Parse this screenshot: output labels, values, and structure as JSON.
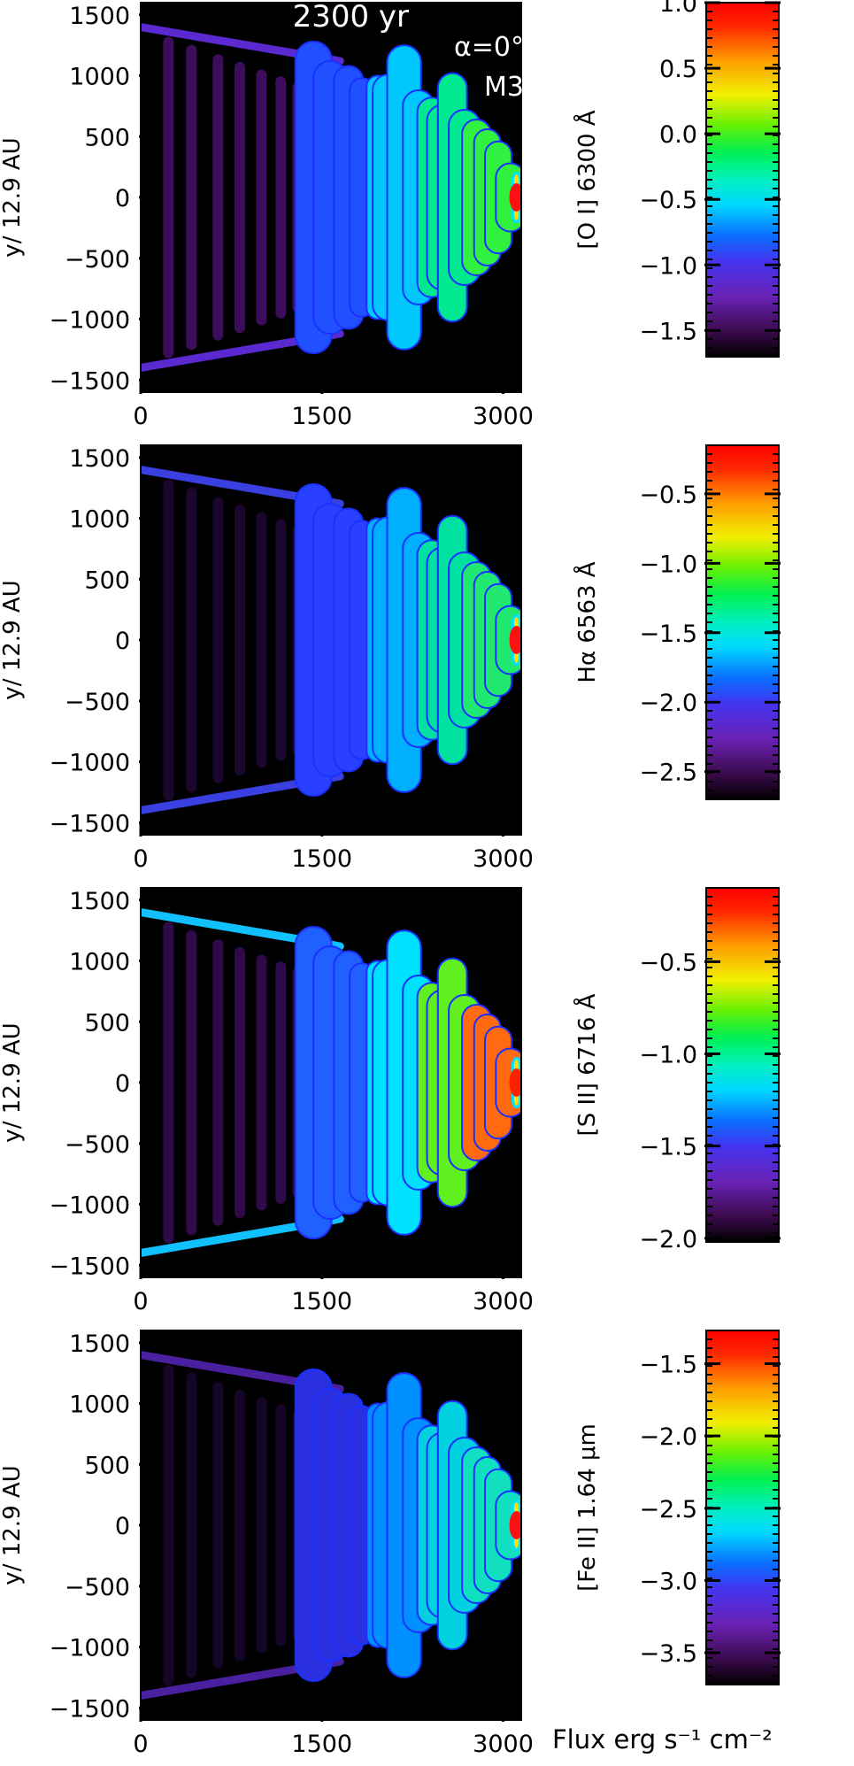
{
  "annotations": {
    "time": "2300 yr",
    "angle": "α=0°",
    "model": "M3"
  },
  "footer_label": "Flux erg s⁻¹ cm⁻²",
  "chart_data": [
    {
      "type": "heatmap",
      "ylabel": "y/ 12.9 AU",
      "xlim": [
        0,
        3150
      ],
      "ylim": [
        -1600,
        1600
      ],
      "x_ticks": [
        0,
        1500,
        3000
      ],
      "x_tick_labels": [
        "0",
        "1500",
        "3000"
      ],
      "y_ticks": [
        -1500,
        -1000,
        -500,
        0,
        500,
        1000,
        1500
      ],
      "y_tick_labels": [
        "−1500",
        "−1000",
        "−500",
        "0",
        "500",
        "1000",
        "1500"
      ],
      "colorbar": {
        "label": "[O I] 6300 Å",
        "range": [
          -1.7,
          1.0
        ],
        "ticks": [
          1.0,
          0.5,
          0.0,
          -0.5,
          -1.0,
          -1.5
        ],
        "tick_labels": [
          "1.0",
          "0.5",
          "0.0",
          "−0.5",
          "−1.0",
          "−1.5"
        ]
      }
    },
    {
      "type": "heatmap",
      "ylabel": "y/ 12.9 AU",
      "xlim": [
        0,
        3150
      ],
      "ylim": [
        -1600,
        1600
      ],
      "x_ticks": [
        0,
        1500,
        3000
      ],
      "x_tick_labels": [
        "0",
        "1500",
        "3000"
      ],
      "y_ticks": [
        -1500,
        -1000,
        -500,
        0,
        500,
        1000,
        1500
      ],
      "y_tick_labels": [
        "−1500",
        "−1000",
        "−500",
        "0",
        "500",
        "1000",
        "1500"
      ],
      "colorbar": {
        "label": "Hα 6563 Å",
        "range": [
          -2.7,
          -0.15
        ],
        "ticks": [
          -0.5,
          -1.0,
          -1.5,
          -2.0,
          -2.5
        ],
        "tick_labels": [
          "−0.5",
          "−1.0",
          "−1.5",
          "−2.0",
          "−2.5"
        ]
      }
    },
    {
      "type": "heatmap",
      "ylabel": "y/ 12.9 AU",
      "xlim": [
        0,
        3150
      ],
      "ylim": [
        -1600,
        1600
      ],
      "x_ticks": [
        0,
        1500,
        3000
      ],
      "x_tick_labels": [
        "0",
        "1500",
        "3000"
      ],
      "y_ticks": [
        -1500,
        -1000,
        -500,
        0,
        500,
        1000,
        1500
      ],
      "y_tick_labels": [
        "−1500",
        "−1000",
        "−500",
        "0",
        "500",
        "1000",
        "1500"
      ],
      "colorbar": {
        "label": "[S II] 6716 Å",
        "range": [
          -2.02,
          -0.1
        ],
        "ticks": [
          -0.5,
          -1.0,
          -1.5,
          -2.0
        ],
        "tick_labels": [
          "−0.5",
          "−1.0",
          "−1.5",
          "−2.0"
        ]
      }
    },
    {
      "type": "heatmap",
      "ylabel": "y/ 12.9 AU",
      "xlim": [
        0,
        3150
      ],
      "ylim": [
        -1600,
        1600
      ],
      "x_ticks": [
        0,
        1500,
        3000
      ],
      "x_tick_labels": [
        "0",
        "1500",
        "3000"
      ],
      "y_ticks": [
        -1500,
        -1000,
        -500,
        0,
        500,
        1000,
        1500
      ],
      "y_tick_labels": [
        "−1500",
        "−1000",
        "−500",
        "0",
        "500",
        "1000",
        "1500"
      ],
      "colorbar": {
        "label": "[Fe II] 1.64 μm",
        "range": [
          -3.72,
          -1.27
        ],
        "ticks": [
          -1.5,
          -2.0,
          -2.5,
          -3.0,
          -3.5
        ],
        "tick_labels": [
          "−1.5",
          "−2.0",
          "−2.5",
          "−3.0",
          "−3.5"
        ]
      }
    }
  ]
}
